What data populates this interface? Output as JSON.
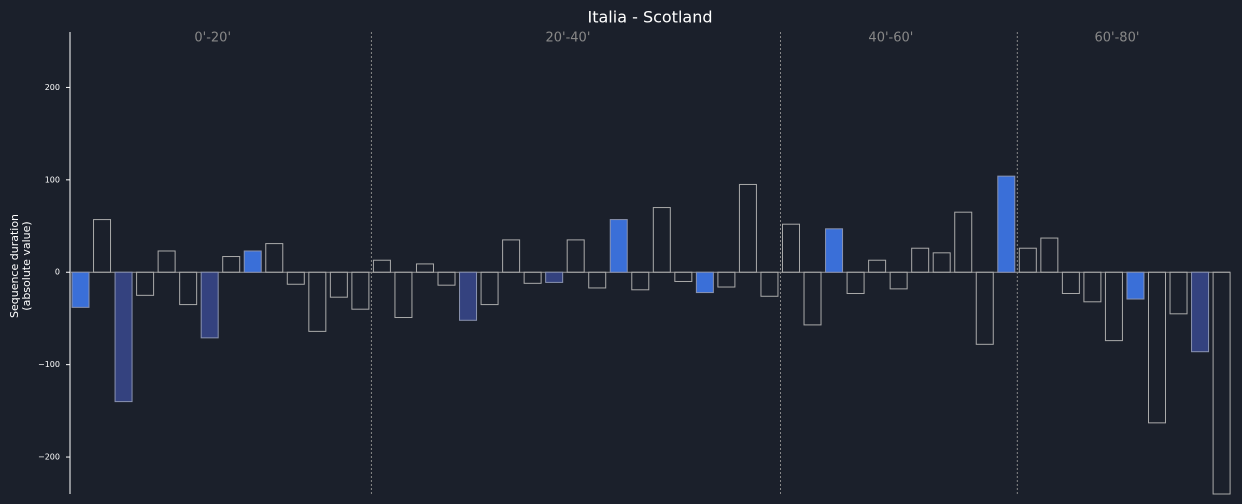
{
  "chart_data": {
    "type": "bar",
    "title": "Italia - Scotland",
    "ylabel": [
      "Sequence duration",
      "(absolute value)"
    ],
    "ylim": [
      -240,
      260
    ],
    "yticks": [
      {
        "value": -200,
        "label": "−200"
      },
      {
        "value": -100,
        "label": "−100"
      },
      0,
      100,
      200
    ],
    "sections": [
      "0'-20'",
      "20'-40'",
      "40'-60'",
      "60'-80'"
    ],
    "values": [
      -38,
      57,
      -140,
      -25,
      23,
      -35,
      -71,
      17,
      23,
      31,
      -13,
      -64,
      -27,
      -40,
      13,
      -49,
      9,
      -14,
      -52,
      -35,
      35,
      -12,
      -11,
      35,
      -17,
      57,
      -19,
      70,
      -10,
      -22,
      -16,
      95,
      -26,
      52,
      -57,
      47,
      -23,
      13,
      -18,
      26,
      21,
      65,
      -78,
      104,
      26,
      37,
      -23,
      -32,
      -74,
      -29,
      -163,
      -45,
      -86,
      -240
    ],
    "colors": [
      "#3a6fd8",
      "none",
      "#34427f",
      "none",
      "none",
      "none",
      "#34427f",
      "none",
      "#3a6fd8",
      "none",
      "none",
      "none",
      "none",
      "none",
      "none",
      "none",
      "none",
      "none",
      "#34427f",
      "none",
      "none",
      "none",
      "#34427f",
      "none",
      "none",
      "#3a6fd8",
      "none",
      "none",
      "none",
      "#3a6fd8",
      "none",
      "none",
      "none",
      "none",
      "none",
      "#3a6fd8",
      "none",
      "none",
      "none",
      "none",
      "none",
      "none",
      "none",
      "#3a6fd8",
      "none",
      "none",
      "none",
      "none",
      "none",
      "#3a6fd8",
      "none",
      "none",
      "#34427f",
      "none"
    ]
  }
}
